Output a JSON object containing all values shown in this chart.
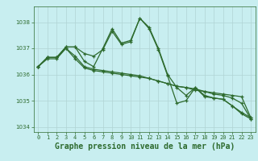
{
  "lines": [
    {
      "x": [
        0,
        1,
        2,
        3,
        4,
        5,
        6,
        7,
        8,
        9,
        10,
        11,
        12,
        13,
        14,
        15,
        16,
        17,
        18,
        19,
        20,
        21,
        22,
        23
      ],
      "y": [
        1036.3,
        1036.65,
        1036.65,
        1037.05,
        1037.05,
        1036.5,
        1036.3,
        1037.0,
        1037.75,
        1037.2,
        1037.3,
        1038.15,
        1037.8,
        1037.0,
        1036.0,
        1035.5,
        1035.2,
        1035.5,
        1035.2,
        1035.1,
        1035.05,
        1034.8,
        1034.5,
        1034.3
      ]
    },
    {
      "x": [
        0,
        1,
        2,
        3,
        4,
        5,
        6,
        7,
        8,
        9,
        10,
        11,
        12,
        13,
        14,
        15,
        16,
        17,
        18,
        19,
        20,
        21,
        22,
        23
      ],
      "y": [
        1036.3,
        1036.65,
        1036.65,
        1037.0,
        1036.7,
        1036.3,
        1036.2,
        1036.15,
        1036.1,
        1036.05,
        1036.0,
        1035.95,
        1035.85,
        1035.75,
        1035.65,
        1035.55,
        1035.5,
        1035.4,
        1035.35,
        1035.3,
        1035.25,
        1035.2,
        1035.15,
        1034.35
      ]
    },
    {
      "x": [
        0,
        1,
        2,
        3,
        4,
        5,
        6,
        7,
        8,
        9,
        10,
        11,
        12,
        13,
        14,
        15,
        16,
        17,
        18,
        19,
        20,
        21,
        22,
        23
      ],
      "y": [
        1036.3,
        1036.65,
        1036.65,
        1037.05,
        1037.05,
        1036.8,
        1036.7,
        1036.95,
        1037.65,
        1037.15,
        1037.25,
        1038.15,
        1037.75,
        1036.95,
        1035.95,
        1034.9,
        1035.0,
        1035.5,
        1035.15,
        1035.1,
        1035.05,
        1034.8,
        1034.55,
        1034.35
      ]
    },
    {
      "x": [
        0,
        1,
        2,
        3,
        4,
        5,
        6,
        7,
        8,
        9,
        10,
        11,
        12,
        13,
        14,
        15,
        16,
        17,
        18,
        19,
        20,
        21,
        22,
        23
      ],
      "y": [
        1036.3,
        1036.6,
        1036.6,
        1037.0,
        1036.6,
        1036.25,
        1036.15,
        1036.1,
        1036.05,
        1036.0,
        1035.95,
        1035.9,
        1035.85,
        1035.75,
        1035.65,
        1035.55,
        1035.5,
        1035.45,
        1035.35,
        1035.25,
        1035.2,
        1035.1,
        1034.9,
        1034.3
      ]
    }
  ],
  "line_color": "#2d6a2d",
  "marker": "+",
  "markersize": 3.5,
  "linewidth": 0.9,
  "xlim": [
    -0.5,
    23.5
  ],
  "ylim": [
    1033.8,
    1038.6
  ],
  "yticks": [
    1034,
    1035,
    1036,
    1037,
    1038
  ],
  "xticks": [
    0,
    1,
    2,
    3,
    4,
    5,
    6,
    7,
    8,
    9,
    10,
    11,
    12,
    13,
    14,
    15,
    16,
    17,
    18,
    19,
    20,
    21,
    22,
    23
  ],
  "xlabel": "Graphe pression niveau de la mer (hPa)",
  "bg_color": "#c8eef0",
  "grid_color": "#b0d4d4",
  "text_color": "#2d6a2d",
  "tick_label_fontsize": 5.0,
  "xlabel_fontsize": 7.0
}
